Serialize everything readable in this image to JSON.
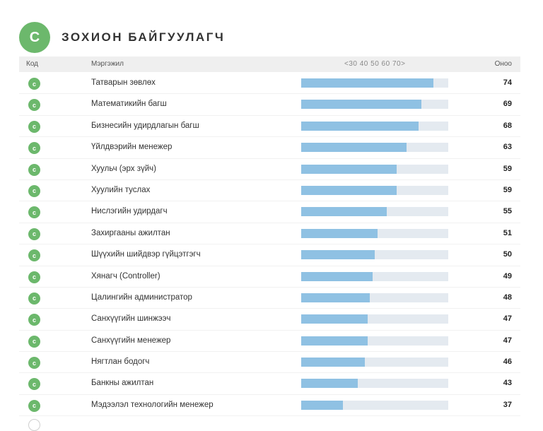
{
  "header": {
    "badge_letter": "C",
    "title": "ЗОХИОН БАЙГУУЛАГЧ"
  },
  "table": {
    "col_code": "Код",
    "col_profession": "Мэргэжил",
    "col_score": "Оноо",
    "scale_ticks": [
      "<30",
      "40",
      "50",
      "60",
      "70>"
    ]
  },
  "colors": {
    "badge": "#6cb86c",
    "bar_fill": "#8fc1e3",
    "bar_track": "#e4eaf0",
    "header_bg": "#efefef"
  },
  "chart_data": {
    "type": "bar",
    "orientation": "horizontal",
    "code_label": "c",
    "categories": [
      "Татварын зөвлөх",
      "Математикийн багш",
      "Бизнесийн удирдлагын багш",
      "Үйлдвэрийн менежер",
      "Хуульч (эрх зүйч)",
      "Хуулийн туслах",
      "Нислэгийн удирдагч",
      "Захиргааны ажилтан",
      "Шүүхийн шийдвэр гүйцэтгэгч",
      "Хянагч (Controller)",
      "Цалингийн администратор",
      "Санхүүгийн шинжээч",
      "Санхүүгийн менежер",
      "Нягтлан бодогч",
      "Банкны ажилтан",
      "Мэдээлэл технологийн менежер"
    ],
    "values": [
      74,
      69,
      68,
      63,
      59,
      59,
      55,
      51,
      50,
      49,
      48,
      47,
      47,
      46,
      43,
      37
    ],
    "xlim": [
      20,
      80
    ],
    "grid": false
  }
}
